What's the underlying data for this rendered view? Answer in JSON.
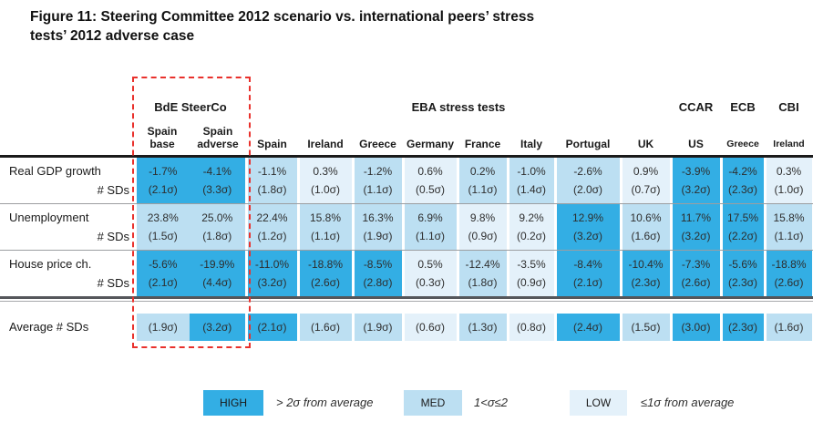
{
  "title": {
    "line1": "Figure 11: Steering Committee 2012 scenario vs. international peers’ stress",
    "line2": "tests’ 2012 adverse case"
  },
  "chart_data": {
    "type": "table",
    "subtype": "heatmap",
    "colors": {
      "high": "#33aee4",
      "med": "#bcdff2",
      "low": "#e4f1fa",
      "highlight_box": "#e9312c"
    },
    "column_groups": [
      {
        "label": "BdE SteerCo",
        "span": 2
      },
      {
        "label": "EBA stress tests",
        "span": 8
      },
      {
        "label": "CCAR",
        "span": 1
      },
      {
        "label": "ECB",
        "span": 1
      },
      {
        "label": "CBI",
        "span": 1
      }
    ],
    "columns": [
      "Spain\nbase",
      "Spain\nadverse",
      "Spain",
      "Ireland",
      "Greece",
      "Germany",
      "France",
      "Italy",
      "Portugal",
      "UK",
      "US",
      "Greece",
      "Ireland"
    ],
    "rows": [
      {
        "label": "Real GDP growth",
        "sublabel": "# SDs",
        "values": [
          "-1.7%",
          "-4.1%",
          "-1.1%",
          "0.3%",
          "-1.2%",
          "0.6%",
          "0.2%",
          "-1.0%",
          "-2.6%",
          "0.9%",
          "-3.9%",
          "-4.2%",
          "0.3%"
        ],
        "sds": [
          "(2.1σ)",
          "(3.3σ)",
          "(1.8σ)",
          "(1.0σ)",
          "(1.1σ)",
          "(0.5σ)",
          "(1.1σ)",
          "(1.4σ)",
          "(2.0σ)",
          "(0.7σ)",
          "(3.2σ)",
          "(2.3σ)",
          "(1.0σ)"
        ],
        "levels": [
          "high",
          "high",
          "med",
          "low",
          "med",
          "low",
          "med",
          "med",
          "med",
          "low",
          "high",
          "high",
          "low"
        ]
      },
      {
        "label": "Unemployment",
        "sublabel": "# SDs",
        "values": [
          "23.8%",
          "25.0%",
          "22.4%",
          "15.8%",
          "16.3%",
          "6.9%",
          "9.8%",
          "9.2%",
          "12.9%",
          "10.6%",
          "11.7%",
          "17.5%",
          "15.8%"
        ],
        "sds": [
          "(1.5σ)",
          "(1.8σ)",
          "(1.2σ)",
          "(1.1σ)",
          "(1.9σ)",
          "(1.1σ)",
          "(0.9σ)",
          "(0.2σ)",
          "(3.2σ)",
          "(1.6σ)",
          "(3.2σ)",
          "(2.2σ)",
          "(1.1σ)"
        ],
        "levels": [
          "med",
          "med",
          "med",
          "med",
          "med",
          "med",
          "low",
          "low",
          "high",
          "med",
          "high",
          "high",
          "med"
        ]
      },
      {
        "label": "House price ch.",
        "sublabel": "# SDs",
        "values": [
          "-5.6%",
          "-19.9%",
          "-11.0%",
          "-18.8%",
          "-8.5%",
          "0.5%",
          "-12.4%",
          "-3.5%",
          "-8.4%",
          "-10.4%",
          "-7.3%",
          "-5.6%",
          "-18.8%"
        ],
        "sds": [
          "(2.1σ)",
          "(4.4σ)",
          "(3.2σ)",
          "(2.6σ)",
          "(2.8σ)",
          "(0.3σ)",
          "(1.8σ)",
          "(0.9σ)",
          "(2.1σ)",
          "(2.3σ)",
          "(2.6σ)",
          "(2.3σ)",
          "(2.6σ)"
        ],
        "levels": [
          "high",
          "high",
          "high",
          "high",
          "high",
          "low",
          "med",
          "low",
          "high",
          "high",
          "high",
          "high",
          "high"
        ]
      }
    ],
    "summary": {
      "label": "Average # SDs",
      "sds": [
        "(1.9σ)",
        "(3.2σ)",
        "(2.1σ)",
        "(1.6σ)",
        "(1.9σ)",
        "(0.6σ)",
        "(1.3σ)",
        "(0.8σ)",
        "(2.4σ)",
        "(1.5σ)",
        "(3.0σ)",
        "(2.3σ)",
        "(1.6σ)"
      ],
      "levels": [
        "med",
        "high",
        "high",
        "med",
        "med",
        "low",
        "med",
        "low",
        "high",
        "med",
        "high",
        "high",
        "med"
      ]
    },
    "legend": [
      {
        "label": "HIGH",
        "desc": "> 2σ from average",
        "level": "high"
      },
      {
        "label": "MED",
        "desc": "1<σ≤2",
        "level": "med"
      },
      {
        "label": "LOW",
        "desc": "≤1σ from average",
        "level": "low"
      }
    ]
  }
}
